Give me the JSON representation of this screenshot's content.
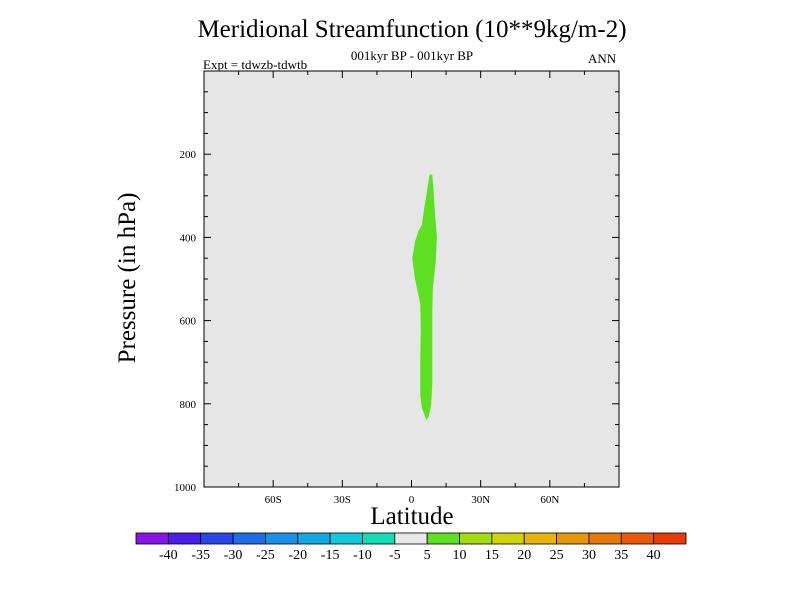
{
  "chart_data": {
    "type": "contour",
    "title": "Meridional Streamfunction (10**9kg/m-2)",
    "subtitle": "001kyr BP - 001kyr BP",
    "left_label": "Expt = tdwzb-tdwtb",
    "right_label": "ANN",
    "xlabel": "Latitude",
    "ylabel": "Pressure (in hPa)",
    "xlim": [
      -90,
      90
    ],
    "ylim": [
      1000,
      0
    ],
    "x_ticks": [
      -60,
      -30,
      0,
      30,
      60
    ],
    "x_tick_labels": [
      "60S",
      "30S",
      "0",
      "30N",
      "60N"
    ],
    "y_ticks": [
      200,
      400,
      600,
      800,
      1000
    ],
    "y_tick_labels": [
      "200",
      "400",
      "600",
      "800",
      "1000"
    ],
    "background_color": "#e6e6e6",
    "contour_regions": [
      {
        "level_range": [
          5,
          10
        ],
        "color": "#5ee022",
        "boundary": [
          [
            7.5,
            260
          ],
          [
            7.0,
            280
          ],
          [
            5.5,
            330
          ],
          [
            4.5,
            370
          ],
          [
            3.0,
            385
          ],
          [
            1.5,
            410
          ],
          [
            0.3,
            450
          ],
          [
            1.5,
            500
          ],
          [
            3.8,
            560
          ],
          [
            4.0,
            620
          ],
          [
            3.8,
            700
          ],
          [
            3.8,
            780
          ],
          [
            4.5,
            810
          ],
          [
            6.5,
            840
          ],
          [
            7.5,
            830
          ],
          [
            8.5,
            805
          ],
          [
            9.0,
            750
          ],
          [
            9.0,
            650
          ],
          [
            9.0,
            580
          ],
          [
            9.3,
            520
          ],
          [
            10.5,
            460
          ],
          [
            11.0,
            400
          ],
          [
            10.0,
            330
          ],
          [
            9.5,
            280
          ],
          [
            9.0,
            250
          ],
          [
            8.0,
            248
          ]
        ]
      }
    ],
    "colorbar": {
      "labels": [
        "-40",
        "-35",
        "-30",
        "-25",
        "-20",
        "-15",
        "-10",
        "-5",
        "5",
        "10",
        "15",
        "20",
        "25",
        "30",
        "35",
        "40"
      ],
      "colors": [
        "#8a14e6",
        "#4a1ee6",
        "#2848e6",
        "#1e6ce6",
        "#1a90e6",
        "#12a8e0",
        "#12c8de",
        "#14dcb4",
        "#e8e8e8",
        "#5ee022",
        "#a0dc10",
        "#d2d20a",
        "#e6b40a",
        "#e6960a",
        "#e6780a",
        "#e65a0a",
        "#e63c0a"
      ]
    }
  }
}
